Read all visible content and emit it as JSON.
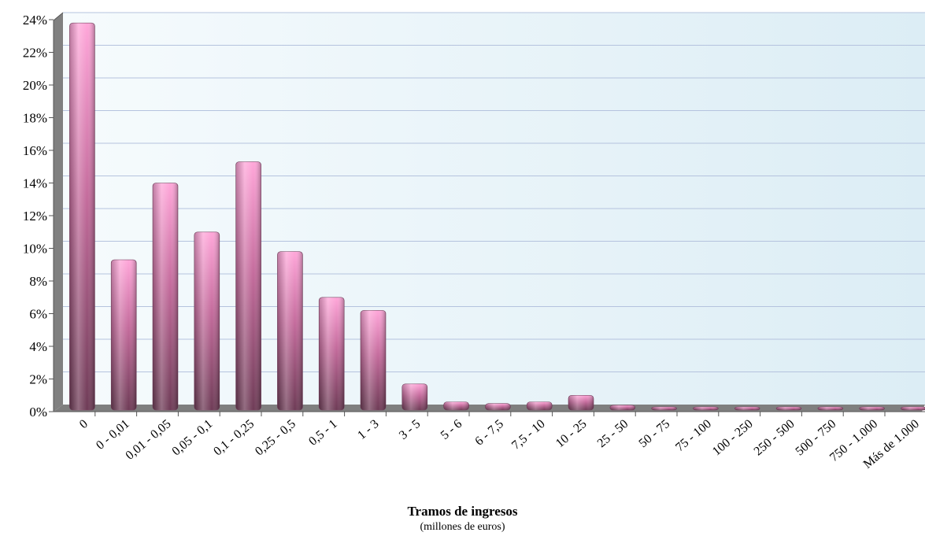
{
  "chart_data": {
    "type": "bar",
    "title": "",
    "xlabel": "Tramos de ingresos",
    "xlabel_sub": "(millones de euros)",
    "ylabel": "",
    "ylim": [
      0,
      24
    ],
    "yticks": [
      "0%",
      "2%",
      "4%",
      "6%",
      "8%",
      "10%",
      "12%",
      "14%",
      "16%",
      "18%",
      "20%",
      "22%",
      "24%"
    ],
    "grid": true,
    "legend": "none",
    "categories": [
      "0",
      "0 - 0,01",
      "0,01 - 0,05",
      "0,05 - 0,1",
      "0,1 - 0,25",
      "0,25 - 0,5",
      "0,5 - 1",
      "1 - 3",
      "3 - 5",
      "5 - 6",
      "6 - 7,5",
      "7,5 - 10",
      "10 - 25",
      "25 - 50",
      "50 - 75",
      "75 - 100",
      "100 - 250",
      "250 - 500",
      "500 - 750",
      "750 - 1.000",
      "Más de 1.000"
    ],
    "series": [
      {
        "values": [
          23.7,
          9.2,
          13.9,
          10.9,
          15.2,
          9.7,
          6.9,
          6.1,
          1.6,
          0.5,
          0.4,
          0.5,
          0.9,
          0.3,
          0.1,
          0.1,
          0.1,
          0.05,
          0.05,
          0.05,
          0.05
        ]
      }
    ],
    "colors": {
      "bar_top": "#ffa6d9",
      "bar_bottom": "#6e3b56",
      "plot_bg": "#e2f2f8",
      "grid": "#aab8d8",
      "floor": "#808080",
      "wall": "#7f7f7f"
    }
  }
}
